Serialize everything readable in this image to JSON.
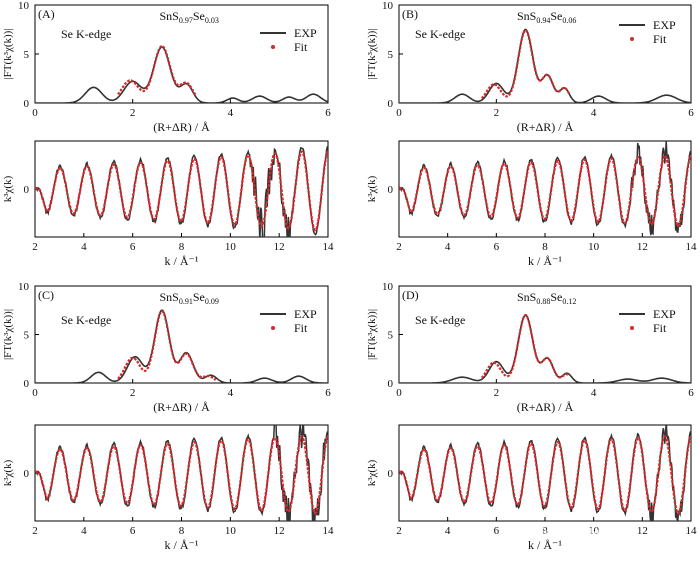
{
  "colors": {
    "exp": "#333333",
    "fit": "#d42a2a",
    "axis": "#000000"
  },
  "watermark": "知乎 @检测中心黄工",
  "chart_data": [
    {
      "type": "line",
      "kind": "ft",
      "panel": "(A)",
      "title": {
        "base": "SnS",
        "s1": "0.97",
        "mid": "Se",
        "s2": "0.03"
      },
      "annotation": "Se K-edge",
      "legend": [
        "EXP",
        "Fit"
      ],
      "xlabel": "(R+ΔR) / Å",
      "ylabel": "|FT(k³χ(k))|",
      "xlim": [
        0,
        6
      ],
      "ylim": [
        0,
        10
      ],
      "xticks": [
        "0",
        "2",
        "4",
        "6"
      ],
      "yticks": [
        "0",
        "5",
        "10"
      ],
      "exp_peaks": [
        [
          1.2,
          1.6,
          0.17
        ],
        [
          2.0,
          2.2,
          0.18
        ],
        [
          2.6,
          5.7,
          0.17
        ],
        [
          3.1,
          1.9,
          0.13
        ],
        [
          4.05,
          0.5,
          0.12
        ],
        [
          4.6,
          0.7,
          0.15
        ],
        [
          5.2,
          0.6,
          0.13
        ],
        [
          5.7,
          0.9,
          0.15
        ]
      ],
      "fit_peaks": [
        [
          1.95,
          2.3,
          0.18
        ],
        [
          2.6,
          5.8,
          0.17
        ],
        [
          3.1,
          2.0,
          0.14
        ],
        [
          3.9,
          0.3,
          0.15
        ]
      ],
      "fit_range": [
        1.7,
        3.3
      ]
    },
    {
      "type": "line",
      "kind": "ft",
      "panel": "(B)",
      "title": {
        "base": "SnS",
        "s1": "0.94",
        "mid": "Se",
        "s2": "0.06"
      },
      "annotation": "Se K-edge",
      "legend": [
        "EXP",
        "Fit"
      ],
      "xlabel": "(R+ΔR) / Å",
      "ylabel": "|FT(k³χ(k))|",
      "xlim": [
        0,
        6
      ],
      "ylim": [
        0,
        10
      ],
      "xticks": [
        "0",
        "2",
        "4",
        "6"
      ],
      "yticks": [
        "0",
        "5",
        "10"
      ],
      "exp_peaks": [
        [
          1.3,
          0.9,
          0.15
        ],
        [
          2.0,
          2.0,
          0.15
        ],
        [
          2.6,
          7.5,
          0.15
        ],
        [
          3.05,
          2.8,
          0.12
        ],
        [
          3.4,
          1.5,
          0.1
        ],
        [
          4.1,
          0.7,
          0.15
        ],
        [
          5.5,
          0.8,
          0.2
        ]
      ],
      "fit_peaks": [
        [
          1.95,
          1.9,
          0.15
        ],
        [
          2.6,
          7.4,
          0.15
        ],
        [
          3.05,
          2.8,
          0.12
        ],
        [
          3.4,
          1.5,
          0.1
        ]
      ],
      "fit_range": [
        1.7,
        3.5
      ]
    },
    {
      "type": "line",
      "kind": "ft",
      "panel": "(C)",
      "title": {
        "base": "SnS",
        "s1": "0.91",
        "mid": "Se",
        "s2": "0.09"
      },
      "annotation": "Se K-edge",
      "legend": [
        "EXP",
        "Fit"
      ],
      "xlabel": "(R+ΔR) / Å",
      "ylabel": "|FT(k³χ(k))|",
      "xlim": [
        0,
        6
      ],
      "ylim": [
        0,
        10
      ],
      "xticks": [
        "0",
        "2",
        "4",
        "6"
      ],
      "yticks": [
        "0",
        "5",
        "10"
      ],
      "exp_peaks": [
        [
          1.3,
          1.1,
          0.15
        ],
        [
          2.05,
          2.7,
          0.16
        ],
        [
          2.6,
          7.5,
          0.15
        ],
        [
          3.1,
          3.1,
          0.14
        ],
        [
          3.6,
          0.8,
          0.12
        ],
        [
          4.7,
          0.5,
          0.15
        ],
        [
          5.4,
          0.7,
          0.15
        ]
      ],
      "fit_peaks": [
        [
          2.0,
          2.6,
          0.16
        ],
        [
          2.6,
          7.4,
          0.15
        ],
        [
          3.1,
          3.0,
          0.14
        ],
        [
          3.55,
          0.7,
          0.12
        ]
      ],
      "fit_range": [
        1.7,
        3.7
      ]
    },
    {
      "type": "line",
      "kind": "ft",
      "panel": "(D)",
      "title": {
        "base": "SnS",
        "s1": "0.88",
        "mid": "Se",
        "s2": "0.12"
      },
      "annotation": "Se K-edge",
      "legend": [
        "EXP",
        "Fit"
      ],
      "xlabel": "(R+ΔR) / Å",
      "ylabel": "|FT(k³χ(k))|",
      "xlim": [
        0,
        6
      ],
      "ylim": [
        0,
        10
      ],
      "xticks": [
        "0",
        "2",
        "4",
        "6"
      ],
      "yticks": [
        "0",
        "5",
        "10"
      ],
      "exp_peaks": [
        [
          1.3,
          0.6,
          0.2
        ],
        [
          2.0,
          2.2,
          0.15
        ],
        [
          2.6,
          7.0,
          0.15
        ],
        [
          3.05,
          2.5,
          0.12
        ],
        [
          3.45,
          1.0,
          0.1
        ],
        [
          4.7,
          0.4,
          0.2
        ],
        [
          5.4,
          0.5,
          0.2
        ]
      ],
      "fit_peaks": [
        [
          1.95,
          2.1,
          0.15
        ],
        [
          2.6,
          7.0,
          0.15
        ],
        [
          3.05,
          2.5,
          0.12
        ],
        [
          3.45,
          0.9,
          0.1
        ]
      ],
      "fit_range": [
        1.7,
        3.5
      ]
    },
    {
      "type": "line",
      "kind": "k",
      "panel": "A-k",
      "xlabel": "k / Å⁻¹",
      "ylabel": "k³χ(k)",
      "xlim": [
        2,
        14
      ],
      "ylim": [
        -1,
        1
      ],
      "xticks": [
        "2",
        "4",
        "6",
        "8",
        "10",
        "12",
        "14"
      ],
      "yticks": [
        "0"
      ],
      "wave": {
        "amp": 0.5,
        "period": 1.1,
        "phase": 0.55,
        "grow": 0.07
      },
      "noise": [
        [
          10.8,
          11.8,
          0.45
        ],
        [
          12.0,
          12.6,
          0.3
        ]
      ]
    },
    {
      "type": "line",
      "kind": "k",
      "panel": "B-k",
      "xlabel": "k / Å⁻¹",
      "ylabel": "k³χ(k)",
      "xlim": [
        2,
        14
      ],
      "ylim": [
        -1,
        1
      ],
      "xticks": [
        "2",
        "4",
        "6",
        "8",
        "10",
        "12",
        "14"
      ],
      "yticks": [
        "0"
      ],
      "wave": {
        "amp": 0.5,
        "period": 1.1,
        "phase": 0.55,
        "grow": 0.05
      },
      "noise": [
        [
          11.5,
          13.8,
          0.25
        ]
      ]
    },
    {
      "type": "line",
      "kind": "k",
      "panel": "C-k",
      "xlabel": "k / Å⁻¹",
      "ylabel": "k³χ(k)",
      "xlim": [
        2,
        14
      ],
      "ylim": [
        -1,
        1
      ],
      "xticks": [
        "2",
        "4",
        "6",
        "8",
        "10",
        "12",
        "14"
      ],
      "yticks": [
        "0"
      ],
      "wave": {
        "amp": 0.55,
        "period": 1.1,
        "phase": 0.55,
        "grow": 0.05
      },
      "noise": [
        [
          11.8,
          13.9,
          0.35
        ]
      ]
    },
    {
      "type": "line",
      "kind": "k",
      "panel": "D-k",
      "xlabel": "k / Å⁻¹",
      "ylabel": "k³χ(k)",
      "xlim": [
        2,
        14
      ],
      "ylim": [
        -1,
        1
      ],
      "xticks": [
        "2",
        "4",
        "6",
        "8",
        "10",
        "12",
        "14"
      ],
      "yticks": [
        "0"
      ],
      "wave": {
        "amp": 0.55,
        "period": 1.1,
        "phase": 0.55,
        "grow": 0.05
      },
      "noise": [
        [
          12.2,
          13.8,
          0.25
        ]
      ]
    }
  ]
}
